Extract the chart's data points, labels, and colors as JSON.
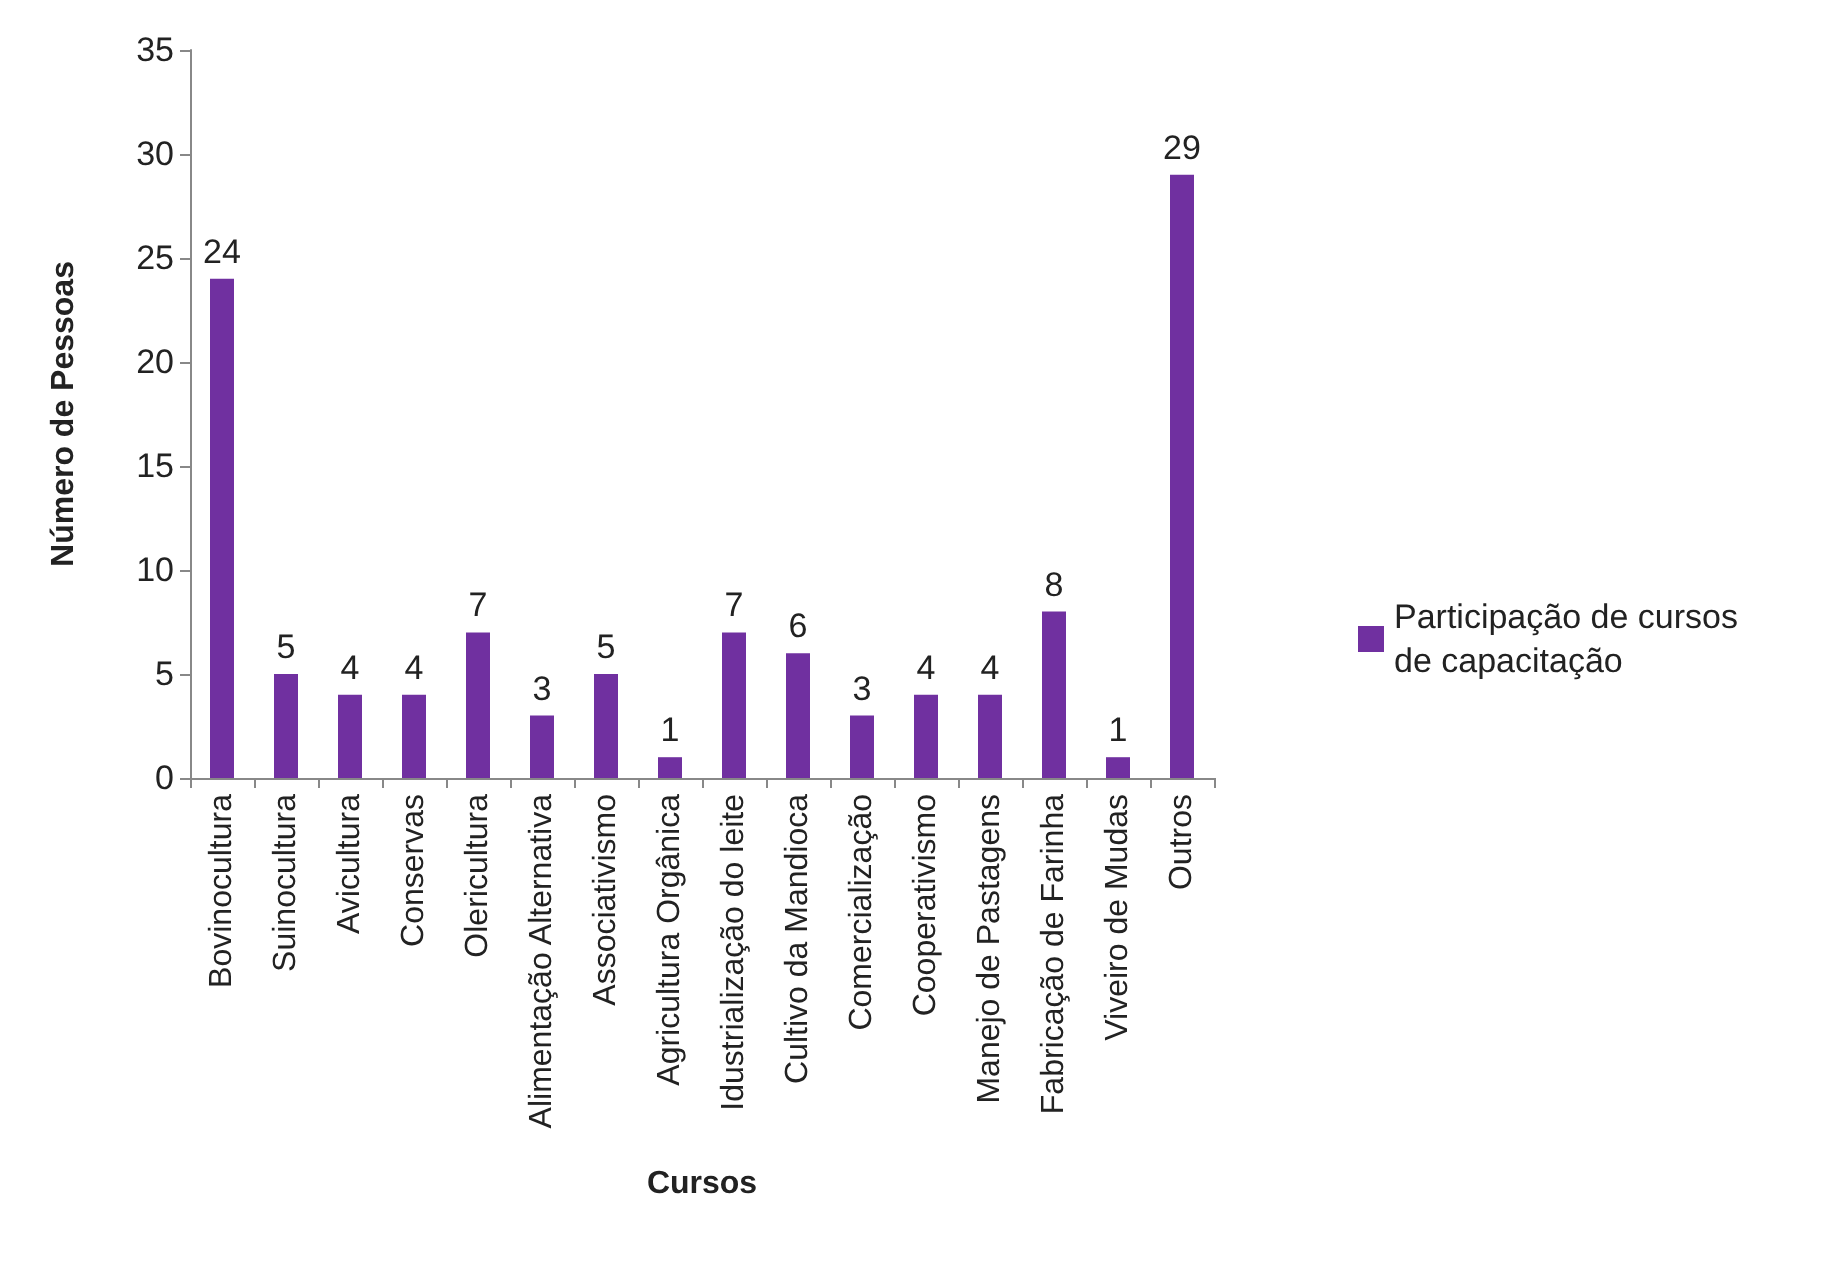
{
  "chart_data": {
    "type": "bar",
    "xlabel": "Cursos",
    "ylabel": "Número de Pessoas",
    "categories": [
      "Bovinocultura",
      "Suinocultura",
      "Avicultura",
      "Conservas",
      "Olericultura",
      "Alimentação Alternativa",
      "Associativismo",
      "Agricultura Orgânica",
      "Idustrialização do leite",
      "Cultivo da Mandioca",
      "Comercialização",
      "Cooperativismo",
      "Manejo de Pastagens",
      "Fabricação de Farinha",
      "Viveiro de Mudas",
      "Outros"
    ],
    "series": [
      {
        "name": "Participação de cursos de capacitação",
        "color": "#7030a0",
        "values": [
          24,
          5,
          4,
          4,
          7,
          3,
          5,
          1,
          7,
          6,
          3,
          4,
          4,
          8,
          1,
          29
        ]
      }
    ],
    "ylim": [
      0,
      35
    ],
    "yticks": [
      0,
      5,
      10,
      15,
      20,
      25,
      30,
      35
    ],
    "grid": false,
    "legend": "right",
    "data_labels": true
  }
}
